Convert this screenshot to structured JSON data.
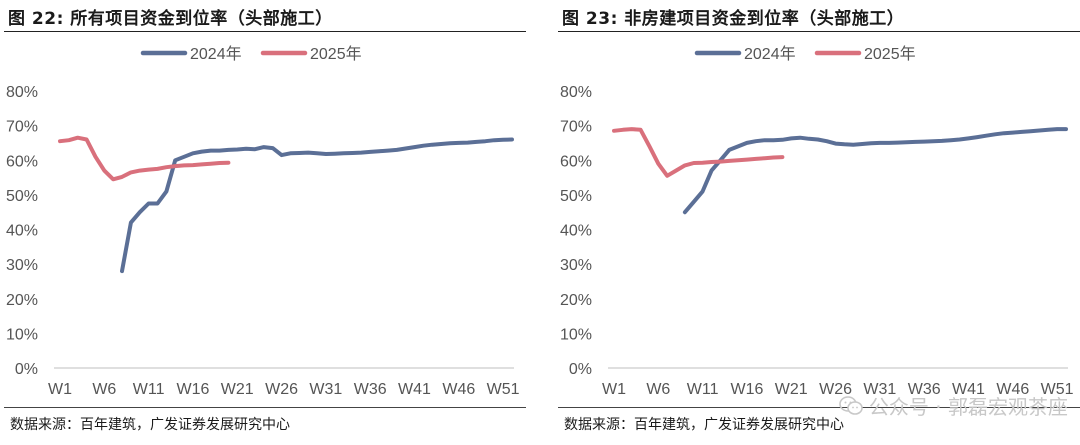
{
  "watermark": {
    "text": "公众号 · 郭磊宏观茶座",
    "icon": "wechat-icon"
  },
  "chart_data": [
    {
      "type": "line",
      "title": "图 22:  所有项目资金到位率（头部施工）",
      "source": "数据来源：百年建筑，广发证券发展研究中心",
      "xlabel": "",
      "ylabel": "",
      "ylim": [
        0,
        80
      ],
      "yticks": [
        "0%",
        "10%",
        "20%",
        "30%",
        "40%",
        "50%",
        "60%",
        "70%",
        "80%"
      ],
      "xlim": [
        1,
        52
      ],
      "xticks": [
        {
          "x": 1,
          "label": "W1"
        },
        {
          "x": 6,
          "label": "W6"
        },
        {
          "x": 11,
          "label": "W11"
        },
        {
          "x": 16,
          "label": "W16"
        },
        {
          "x": 21,
          "label": "W21"
        },
        {
          "x": 26,
          "label": "W26"
        },
        {
          "x": 31,
          "label": "W31"
        },
        {
          "x": 36,
          "label": "W36"
        },
        {
          "x": 41,
          "label": "W41"
        },
        {
          "x": 46,
          "label": "W46"
        },
        {
          "x": 51,
          "label": "W51"
        }
      ],
      "grid": false,
      "legend": "top-center",
      "series": [
        {
          "name": "2024年",
          "color": "#5B6F96",
          "x": [
            8,
            9,
            10,
            11,
            12,
            13,
            14,
            15,
            16,
            17,
            18,
            19,
            20,
            21,
            22,
            23,
            24,
            25,
            26,
            27,
            28,
            29,
            30,
            31,
            32,
            33,
            34,
            35,
            36,
            37,
            38,
            39,
            40,
            41,
            42,
            43,
            44,
            45,
            46,
            47,
            48,
            49,
            50,
            51,
            52
          ],
          "values": [
            28,
            42,
            45,
            47.5,
            47.5,
            51,
            60,
            61,
            62,
            62.5,
            62.8,
            62.8,
            63,
            63.1,
            63.3,
            63.2,
            63.8,
            63.5,
            61.5,
            62,
            62.1,
            62.2,
            62,
            61.8,
            61.9,
            62,
            62.1,
            62.2,
            62.4,
            62.6,
            62.8,
            63,
            63.4,
            63.8,
            64.2,
            64.5,
            64.7,
            64.9,
            65,
            65.1,
            65.3,
            65.5,
            65.8,
            65.9,
            66
          ]
        },
        {
          "name": "2025年",
          "color": "#D9707C",
          "x": [
            1,
            2,
            3,
            4,
            5,
            6,
            7,
            8,
            9,
            10,
            11,
            12,
            13,
            14,
            15,
            16,
            17,
            18,
            19,
            20
          ],
          "values": [
            65.5,
            65.8,
            66.5,
            66,
            61,
            57,
            54.5,
            55.2,
            56.5,
            57,
            57.3,
            57.5,
            58,
            58.3,
            58.5,
            58.6,
            58.8,
            59,
            59.2,
            59.3
          ]
        }
      ]
    },
    {
      "type": "line",
      "title": "图 23:  非房建项目资金到位率（头部施工）",
      "source": "数据来源：百年建筑，广发证券发展研究中心",
      "xlabel": "",
      "ylabel": "",
      "ylim": [
        0,
        80
      ],
      "yticks": [
        "0%",
        "10%",
        "20%",
        "30%",
        "40%",
        "50%",
        "60%",
        "70%",
        "80%"
      ],
      "xlim": [
        1,
        52
      ],
      "xticks": [
        {
          "x": 1,
          "label": "W1"
        },
        {
          "x": 6,
          "label": "W6"
        },
        {
          "x": 11,
          "label": "W11"
        },
        {
          "x": 16,
          "label": "W16"
        },
        {
          "x": 21,
          "label": "W21"
        },
        {
          "x": 26,
          "label": "W26"
        },
        {
          "x": 31,
          "label": "W31"
        },
        {
          "x": 36,
          "label": "W36"
        },
        {
          "x": 41,
          "label": "W41"
        },
        {
          "x": 46,
          "label": "W46"
        },
        {
          "x": 51,
          "label": "W51"
        }
      ],
      "grid": false,
      "legend": "top-center",
      "series": [
        {
          "name": "2024年",
          "color": "#5B6F96",
          "x": [
            9,
            10,
            11,
            12,
            13,
            14,
            15,
            16,
            17,
            18,
            19,
            20,
            21,
            22,
            23,
            24,
            25,
            26,
            27,
            28,
            29,
            30,
            31,
            32,
            33,
            34,
            35,
            36,
            37,
            38,
            39,
            40,
            41,
            42,
            43,
            44,
            45,
            46,
            47,
            48,
            49,
            50,
            51,
            52
          ],
          "values": [
            45,
            48,
            51,
            57,
            60,
            63,
            64,
            65,
            65.5,
            65.8,
            65.8,
            65.9,
            66.3,
            66.5,
            66.2,
            66,
            65.5,
            64.8,
            64.6,
            64.5,
            64.7,
            64.9,
            65,
            65,
            65.1,
            65.2,
            65.3,
            65.4,
            65.5,
            65.6,
            65.8,
            66,
            66.3,
            66.7,
            67.1,
            67.5,
            67.8,
            68,
            68.2,
            68.4,
            68.6,
            68.8,
            69,
            69
          ]
        },
        {
          "name": "2025年",
          "color": "#D9707C",
          "x": [
            1,
            2,
            3,
            4,
            5,
            6,
            7,
            8,
            9,
            10,
            11,
            12,
            13,
            14,
            15,
            16,
            17,
            18,
            19,
            20
          ],
          "values": [
            68.5,
            68.8,
            69,
            68.8,
            64,
            59,
            55.5,
            57,
            58.5,
            59.2,
            59.3,
            59.5,
            59.6,
            59.8,
            60,
            60.2,
            60.4,
            60.6,
            60.8,
            60.9
          ]
        }
      ]
    }
  ]
}
